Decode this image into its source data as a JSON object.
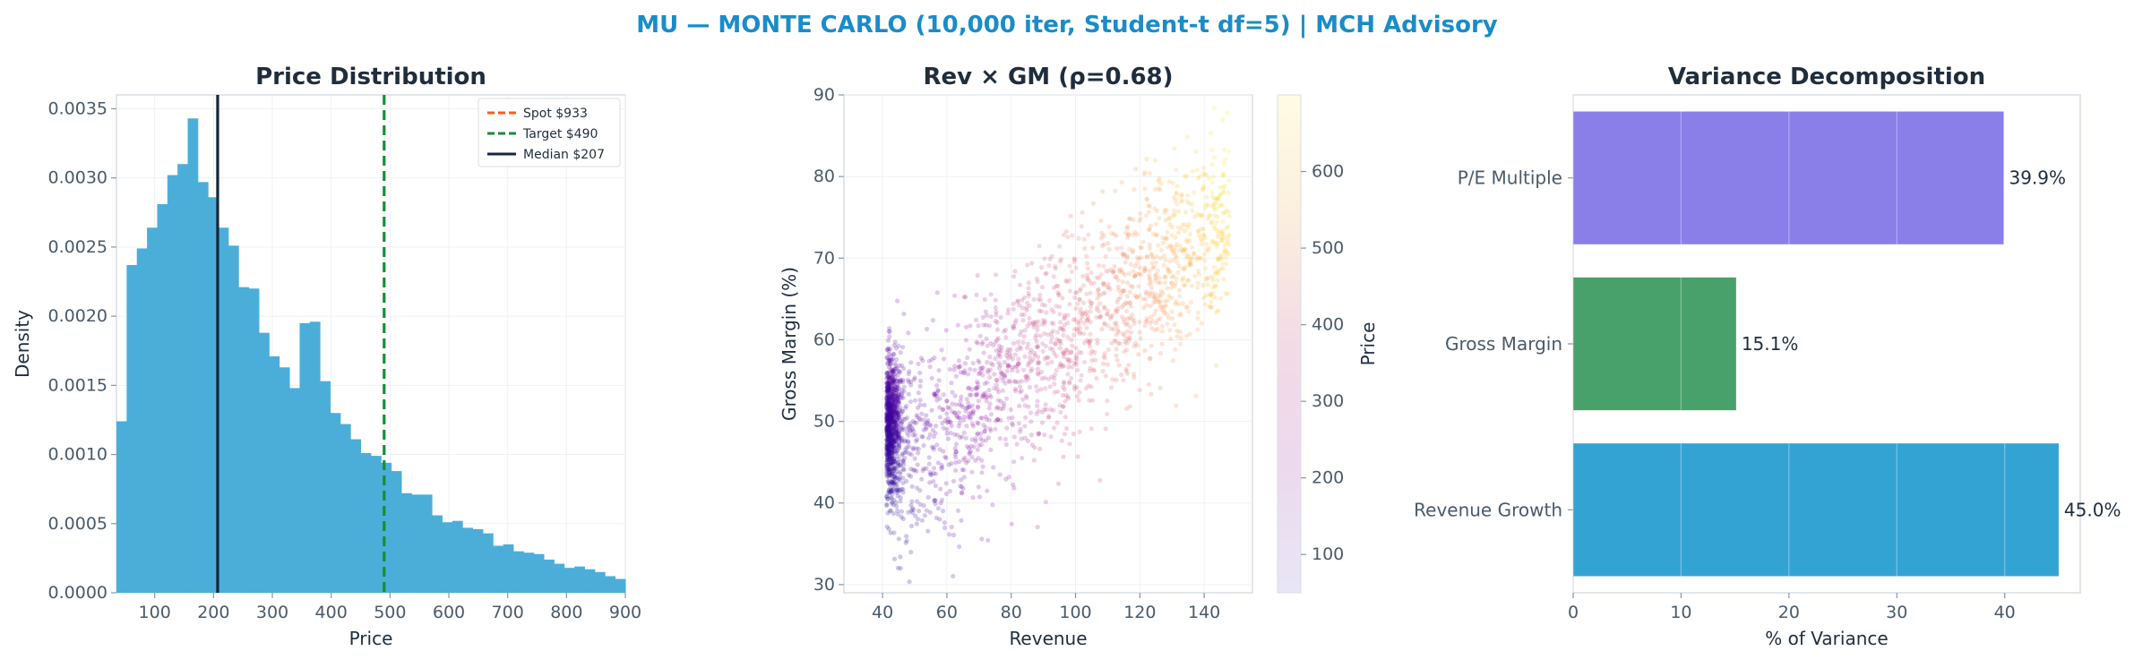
{
  "suptitle": "MU — MONTE CARLO (10,000 iter, Student-t df=5) | MCH Advisory",
  "colors": {
    "suptitle": "#1a8cc8",
    "title": "#1f2d3d",
    "tick": "#4a5a6a",
    "hist": "#4baed9",
    "spot": "#ff5a1f",
    "target": "#1a8a3c",
    "median": "#15263c",
    "bar_pe": "#8a7ee8",
    "bar_gm": "#48a06b",
    "bar_rev": "#33a3d4"
  },
  "chart_data": [
    {
      "type": "bar",
      "title": "Price Distribution",
      "xlabel": "Price",
      "ylabel": "Density",
      "xlim": [
        35,
        900
      ],
      "ylim": [
        0,
        0.0036
      ],
      "xticks": [
        "100",
        "200",
        "300",
        "400",
        "500",
        "600",
        "700",
        "800",
        "900"
      ],
      "yticks": [
        "0.0000",
        "0.0005",
        "0.0010",
        "0.0015",
        "0.0020",
        "0.0025",
        "0.0030",
        "0.0035"
      ],
      "bin_start": 35,
      "bin_width": 17.3,
      "values": [
        0.00124,
        0.00237,
        0.00249,
        0.00264,
        0.00281,
        0.00302,
        0.0031,
        0.00343,
        0.00297,
        0.00286,
        0.00264,
        0.00251,
        0.00221,
        0.0022,
        0.00188,
        0.00171,
        0.00163,
        0.00148,
        0.00195,
        0.00196,
        0.00153,
        0.0013,
        0.00122,
        0.00111,
        0.00101,
        0.00099,
        0.00094,
        0.00088,
        0.00072,
        0.00071,
        0.00071,
        0.00056,
        0.00051,
        0.00052,
        0.00047,
        0.00046,
        0.00043,
        0.00034,
        0.00035,
        0.0003,
        0.00029,
        0.00028,
        0.00024,
        0.00021,
        0.00018,
        0.00019,
        0.00017,
        0.00015,
        0.00012,
        0.0001
      ],
      "vlines": [
        {
          "name": "Spot $933",
          "x": 933,
          "style": "dashed",
          "color": "#ff5a1f"
        },
        {
          "name": "Target $490",
          "x": 490,
          "style": "dashed",
          "color": "#1a8a3c"
        },
        {
          "name": "Median $207",
          "x": 207,
          "style": "solid",
          "color": "#15263c"
        }
      ],
      "legend": "top-right",
      "grid": true
    },
    {
      "type": "scatter",
      "title": "Rev × GM (ρ=0.68)",
      "xlabel": "Revenue",
      "ylabel": "Gross Margin (%)",
      "xlim": [
        28,
        155
      ],
      "ylim": [
        29,
        90
      ],
      "xticks": [
        "40",
        "60",
        "80",
        "100",
        "120",
        "140"
      ],
      "yticks": [
        "30",
        "40",
        "50",
        "60",
        "70",
        "80",
        "90"
      ],
      "n_points": 10000,
      "correlation": 0.68,
      "colorbar": {
        "label": "Price",
        "range": [
          50,
          700
        ],
        "ticks": [
          "100",
          "200",
          "300",
          "400",
          "500",
          "600"
        ],
        "colormap": "plasma_r"
      },
      "grid": true
    },
    {
      "type": "bar",
      "orientation": "horizontal",
      "title": "Variance Decomposition",
      "xlabel": "% of Variance",
      "xlim": [
        0,
        47
      ],
      "xticks": [
        "0",
        "10",
        "20",
        "30",
        "40"
      ],
      "categories": [
        "P/E Multiple",
        "Gross Margin",
        "Revenue Growth"
      ],
      "values": [
        39.9,
        15.1,
        45.0
      ],
      "labels": [
        "39.9%",
        "15.1%",
        "45.0%"
      ],
      "grid": true
    }
  ]
}
